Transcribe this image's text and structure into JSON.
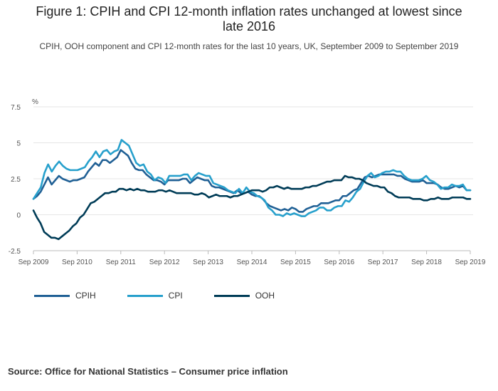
{
  "header": {
    "title_line1": "Figure 1: CPIH and CPI 12-month inflation rates unchanged at lowest since",
    "title_line2": "late 2016",
    "subtitle": "CPIH, OOH component and CPI 12-month rates for the last 10 years, UK, September 2009 to September 2019"
  },
  "source": "Source: Office for National Statistics – Consumer price inflation",
  "chart_data": {
    "type": "line",
    "ylabel": "%",
    "ylim": [
      -2.5,
      7.5
    ],
    "yticks": [
      -2.5,
      0,
      2.5,
      5,
      7.5
    ],
    "ytick_labels": [
      "-2.5",
      "0",
      "2.5",
      "5",
      "7.5"
    ],
    "xticks": [
      "Sep 2009",
      "Sep 2010",
      "Sep 2011",
      "Sep 2012",
      "Sep 2013",
      "Sep 2014",
      "Sep 2015",
      "Sep 2016",
      "Sep 2017",
      "Sep 2018",
      "Sep 2019"
    ],
    "x_start": "Sep 2009",
    "x_end": "Sep 2019",
    "grid": true,
    "legend_position": "bottom-left",
    "series": [
      {
        "name": "CPIH",
        "color": "#206095",
        "values": [
          1.1,
          1.3,
          1.6,
          2.1,
          2.6,
          2.1,
          2.4,
          2.7,
          2.5,
          2.4,
          2.3,
          2.4,
          2.4,
          2.5,
          2.6,
          3.0,
          3.3,
          3.6,
          3.4,
          3.8,
          3.8,
          3.6,
          3.8,
          4.0,
          4.5,
          4.3,
          4.1,
          3.6,
          3.2,
          3.1,
          3.1,
          2.8,
          2.6,
          2.4,
          2.4,
          2.3,
          2.1,
          2.4,
          2.4,
          2.4,
          2.4,
          2.5,
          2.5,
          2.2,
          2.4,
          2.6,
          2.5,
          2.4,
          2.4,
          2.0,
          1.9,
          1.9,
          1.8,
          1.7,
          1.6,
          1.5,
          1.7,
          1.5,
          1.5,
          1.6,
          1.4,
          1.3,
          1.3,
          1.1,
          0.8,
          0.6,
          0.5,
          0.4,
          0.3,
          0.4,
          0.3,
          0.5,
          0.4,
          0.2,
          0.2,
          0.4,
          0.5,
          0.6,
          0.6,
          0.8,
          0.8,
          0.8,
          0.9,
          1.0,
          1.0,
          1.3,
          1.3,
          1.5,
          1.7,
          1.8,
          2.2,
          2.6,
          2.7,
          2.6,
          2.7,
          2.8,
          2.8,
          2.8,
          2.8,
          2.8,
          2.7,
          2.7,
          2.5,
          2.4,
          2.3,
          2.3,
          2.3,
          2.4,
          2.2,
          2.2,
          2.2,
          2.1,
          1.9,
          1.8,
          1.8,
          1.9,
          2.0,
          1.9,
          2.0,
          1.7,
          1.7
        ]
      },
      {
        "name": "CPI",
        "color": "#27a0cc",
        "values": [
          1.1,
          1.5,
          1.9,
          2.9,
          3.5,
          3.0,
          3.4,
          3.7,
          3.4,
          3.2,
          3.1,
          3.1,
          3.1,
          3.2,
          3.3,
          3.7,
          4.0,
          4.4,
          4.0,
          4.4,
          4.5,
          4.2,
          4.4,
          4.5,
          5.2,
          5.0,
          4.8,
          4.2,
          3.6,
          3.4,
          3.5,
          3.0,
          2.8,
          2.4,
          2.6,
          2.5,
          2.2,
          2.7,
          2.7,
          2.7,
          2.7,
          2.8,
          2.8,
          2.4,
          2.7,
          2.9,
          2.8,
          2.7,
          2.7,
          2.2,
          2.1,
          2.0,
          1.9,
          1.7,
          1.6,
          1.5,
          1.8,
          1.5,
          1.9,
          1.6,
          1.5,
          1.3,
          1.2,
          1.0,
          0.5,
          0.3,
          0.0,
          0.0,
          -0.1,
          0.1,
          0.0,
          0.1,
          0.0,
          -0.1,
          -0.1,
          0.1,
          0.2,
          0.3,
          0.5,
          0.5,
          0.3,
          0.3,
          0.5,
          0.6,
          0.6,
          1.0,
          0.9,
          1.2,
          1.6,
          1.8,
          2.3,
          2.7,
          2.9,
          2.6,
          2.7,
          2.9,
          3.0,
          3.0,
          3.1,
          3.0,
          3.0,
          2.7,
          2.5,
          2.4,
          2.4,
          2.4,
          2.5,
          2.7,
          2.4,
          2.3,
          2.1,
          1.8,
          1.9,
          1.9,
          2.1,
          2.0,
          2.0,
          2.1,
          1.7,
          1.7
        ]
      },
      {
        "name": "OOH",
        "color": "#003c57",
        "values": [
          0.3,
          -0.2,
          -0.6,
          -1.2,
          -1.4,
          -1.6,
          -1.6,
          -1.7,
          -1.5,
          -1.3,
          -1.1,
          -0.8,
          -0.6,
          -0.2,
          0.0,
          0.4,
          0.8,
          0.9,
          1.1,
          1.3,
          1.5,
          1.5,
          1.6,
          1.6,
          1.8,
          1.8,
          1.7,
          1.8,
          1.7,
          1.8,
          1.7,
          1.7,
          1.6,
          1.6,
          1.6,
          1.7,
          1.7,
          1.6,
          1.7,
          1.6,
          1.5,
          1.5,
          1.5,
          1.5,
          1.5,
          1.4,
          1.4,
          1.5,
          1.4,
          1.2,
          1.3,
          1.4,
          1.3,
          1.3,
          1.3,
          1.2,
          1.3,
          1.3,
          1.4,
          1.5,
          1.6,
          1.7,
          1.7,
          1.7,
          1.6,
          1.7,
          1.9,
          1.9,
          2.0,
          1.9,
          1.8,
          1.9,
          1.8,
          1.8,
          1.8,
          1.8,
          1.9,
          1.9,
          2.0,
          2.0,
          2.1,
          2.2,
          2.3,
          2.3,
          2.4,
          2.4,
          2.4,
          2.7,
          2.6,
          2.6,
          2.5,
          2.5,
          2.4,
          2.2,
          2.1,
          2.0,
          2.0,
          1.9,
          1.9,
          1.6,
          1.5,
          1.3,
          1.2,
          1.2,
          1.2,
          1.2,
          1.1,
          1.1,
          1.1,
          1.0,
          1.0,
          1.1,
          1.1,
          1.2,
          1.1,
          1.1,
          1.1,
          1.2,
          1.2,
          1.2,
          1.2,
          1.1,
          1.1
        ]
      }
    ]
  }
}
